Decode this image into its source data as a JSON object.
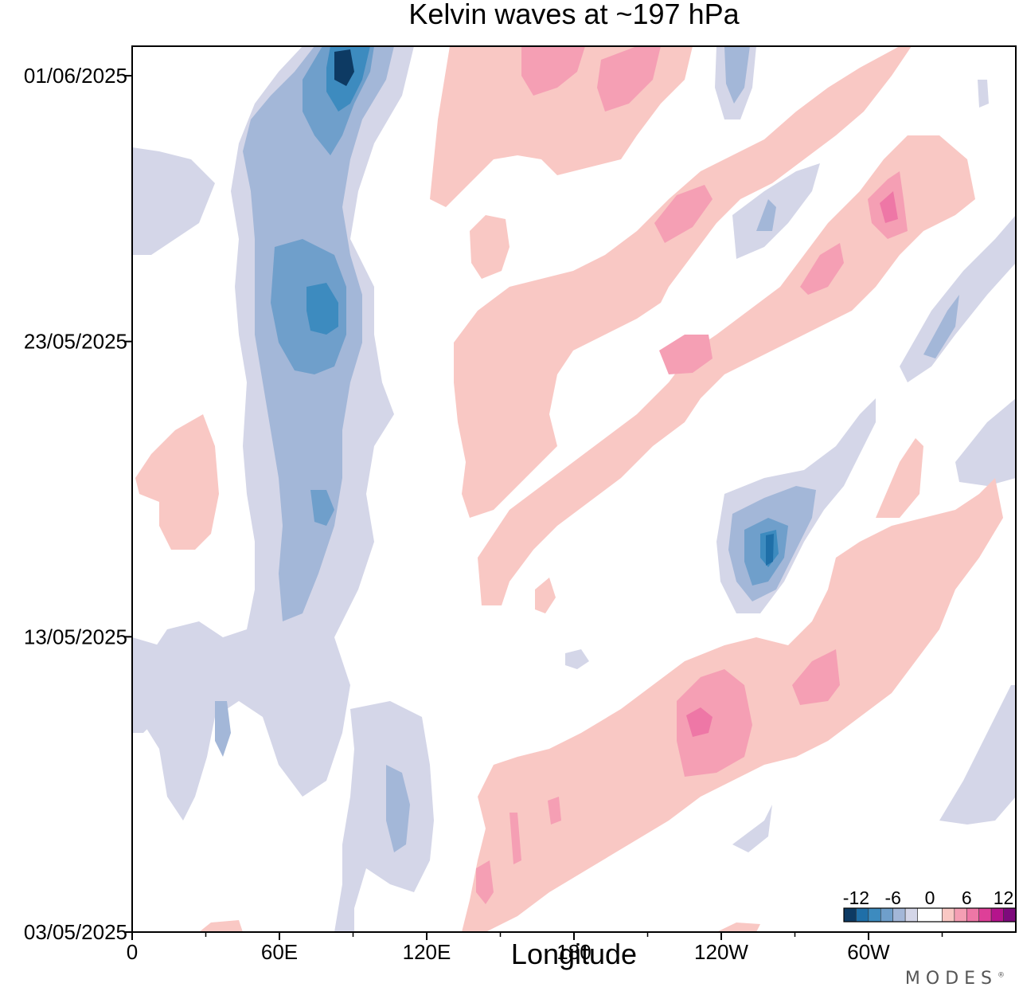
{
  "chart_data": {
    "type": "heatmap",
    "title": "Kelvin waves at ~197 hPa",
    "xlabel": "Longitude",
    "ylabel": "",
    "x_ticks": [
      {
        "lon": 0,
        "label": "0"
      },
      {
        "lon": 60,
        "label": "60E"
      },
      {
        "lon": 120,
        "label": "120E"
      },
      {
        "lon": 180,
        "label": "180"
      },
      {
        "lon": 240,
        "label": "120W"
      },
      {
        "lon": 300,
        "label": "60W"
      }
    ],
    "x_range": [
      0,
      360
    ],
    "y_range": [
      "03/05/2025",
      "02/06/2025"
    ],
    "y_ticks": [
      {
        "date": "03/05/2025",
        "label": "03/05/2025"
      },
      {
        "date": "13/05/2025",
        "label": "13/05/2025"
      },
      {
        "date": "23/05/2025",
        "label": "23/05/2025"
      },
      {
        "date": "01/06/2025",
        "label": "01/06/2025"
      }
    ],
    "colorbar": {
      "tick_labels": [
        "-12",
        "-6",
        "0",
        "6",
        "12"
      ],
      "tick_values": [
        -12,
        -6,
        0,
        6,
        12
      ],
      "levels": [
        -14,
        -12,
        -10,
        -8,
        -6,
        -4,
        -2,
        2,
        4,
        6,
        8,
        10,
        12,
        14
      ],
      "colors": [
        "#0d3a63",
        "#1f6fa8",
        "#3d8bbf",
        "#6f9fcb",
        "#a3b7d8",
        "#d4d6e8",
        "#ffffff",
        "#f9c8c4",
        "#f59fb4",
        "#ee77a6",
        "#de3f98",
        "#b5148c",
        "#7e0a7c"
      ]
    },
    "features": [
      {
        "kind": "negative",
        "center_lon": 72,
        "center_date": "20/05/2025",
        "peak": -11
      },
      {
        "kind": "negative",
        "center_lon": 85,
        "center_date": "31/05/2025",
        "peak": -13
      },
      {
        "kind": "negative",
        "center_lon": 258,
        "center_date": "15/05/2025",
        "peak": -11
      },
      {
        "kind": "positive",
        "center_lon": 240,
        "center_date": "10/05/2025",
        "peak": 9
      },
      {
        "kind": "positive",
        "center_lon": 230,
        "center_date": "22/05/2025",
        "peak": 7
      },
      {
        "kind": "positive",
        "center_lon": 218,
        "center_date": "27/05/2025",
        "peak": 7
      },
      {
        "kind": "positive",
        "center_lon": 185,
        "center_date": "31/05/2025",
        "peak": 7
      }
    ]
  },
  "brand": {
    "text": "MODES",
    "mark": "®"
  }
}
